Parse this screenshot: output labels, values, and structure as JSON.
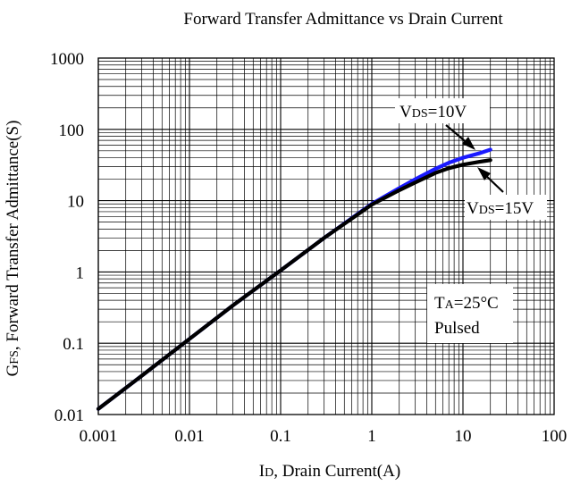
{
  "chart_data": {
    "type": "line",
    "title": "Forward Transfer Admittance vs Drain Current",
    "xlabel": {
      "sym_main": "I",
      "sym_sub": "D",
      "rest": ", Drain Current(A)"
    },
    "ylabel": {
      "sym_main": "G",
      "sym_sub": "FS",
      "rest": ", Forward Transfer Admittance(S)"
    },
    "x_scale": "log",
    "y_scale": "log",
    "xlim": [
      0.001,
      100
    ],
    "ylim": [
      0.01,
      1000
    ],
    "x_ticks": [
      "0.001",
      "0.01",
      "0.1",
      "1",
      "10",
      "100"
    ],
    "y_ticks": [
      "0.01",
      "0.1",
      "1",
      "10",
      "100",
      "1000"
    ],
    "grid": true,
    "series": [
      {
        "name": "VDS=10V",
        "color": "#1a1aff",
        "x": [
          0.001,
          0.003,
          0.01,
          0.03,
          0.1,
          0.3,
          1,
          2,
          3,
          5,
          7,
          10,
          15,
          20
        ],
        "y": [
          0.012,
          0.035,
          0.115,
          0.34,
          1.05,
          3.0,
          9.0,
          15,
          20,
          28,
          34,
          40,
          46,
          52
        ]
      },
      {
        "name": "VDS=15V",
        "color": "#000000",
        "x": [
          0.001,
          0.003,
          0.01,
          0.03,
          0.1,
          0.3,
          1,
          2,
          3,
          5,
          7,
          10,
          15,
          20
        ],
        "y": [
          0.012,
          0.035,
          0.115,
          0.34,
          1.05,
          3.0,
          8.8,
          14,
          18,
          24.5,
          28.5,
          32,
          35,
          37
        ]
      }
    ],
    "annotations": {
      "vds10": {
        "main": "V",
        "sub": "DS",
        "rest": "=10V"
      },
      "vds15": {
        "main": "V",
        "sub": "DS",
        "rest": "=15V"
      },
      "conditions": {
        "line1_main": "T",
        "line1_sub": "A",
        "line1_rest": "=25°C",
        "line2": "Pulsed"
      }
    }
  }
}
